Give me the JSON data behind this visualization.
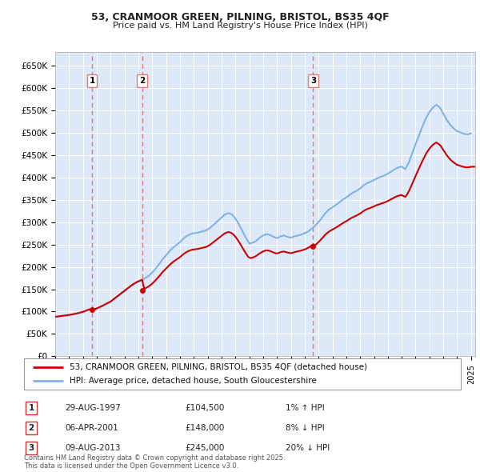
{
  "title_line1": "53, CRANMOOR GREEN, PILNING, BRISTOL, BS35 4QF",
  "title_line2": "Price paid vs. HM Land Registry's House Price Index (HPI)",
  "background_color": "#ffffff",
  "plot_bg_color": "#dde8f8",
  "grid_color": "#ffffff",
  "hpi_color": "#7fb3e8",
  "price_color": "#cc0000",
  "sale_marker_color": "#cc0000",
  "sale_vline_color": "#e87878",
  "yticks": [
    0,
    50000,
    100000,
    150000,
    200000,
    250000,
    300000,
    350000,
    400000,
    450000,
    500000,
    550000,
    600000,
    650000
  ],
  "ytick_labels": [
    "£0",
    "£50K",
    "£100K",
    "£150K",
    "£200K",
    "£250K",
    "£300K",
    "£350K",
    "£400K",
    "£450K",
    "£500K",
    "£550K",
    "£600K",
    "£650K"
  ],
  "xmin": 1995.0,
  "xmax": 2025.3,
  "ymin": 0,
  "ymax": 680000,
  "sales": [
    {
      "year": 1997.66,
      "price": 104500,
      "label": "1"
    },
    {
      "year": 2001.27,
      "price": 148000,
      "label": "2"
    },
    {
      "year": 2013.61,
      "price": 245000,
      "label": "3"
    }
  ],
  "legend_entries": [
    {
      "label": "53, CRANMOOR GREEN, PILNING, BRISTOL, BS35 4QF (detached house)",
      "color": "#cc0000"
    },
    {
      "label": "HPI: Average price, detached house, South Gloucestershire",
      "color": "#7fb3e8"
    }
  ],
  "table_rows": [
    {
      "num": "1",
      "date": "29-AUG-1997",
      "price": "£104,500",
      "hpi": "1% ↑ HPI"
    },
    {
      "num": "2",
      "date": "06-APR-2001",
      "price": "£148,000",
      "hpi": "8% ↓ HPI"
    },
    {
      "num": "3",
      "date": "09-AUG-2013",
      "price": "£245,000",
      "hpi": "20% ↓ HPI"
    }
  ],
  "footnote": "Contains HM Land Registry data © Crown copyright and database right 2025.\nThis data is licensed under the Open Government Licence v3.0.",
  "hpi_data_x": [
    1995.0,
    1995.25,
    1995.5,
    1995.75,
    1996.0,
    1996.25,
    1996.5,
    1996.75,
    1997.0,
    1997.25,
    1997.5,
    1997.75,
    1998.0,
    1998.25,
    1998.5,
    1998.75,
    1999.0,
    1999.25,
    1999.5,
    1999.75,
    2000.0,
    2000.25,
    2000.5,
    2000.75,
    2001.0,
    2001.25,
    2001.5,
    2001.75,
    2002.0,
    2002.25,
    2002.5,
    2002.75,
    2003.0,
    2003.25,
    2003.5,
    2003.75,
    2004.0,
    2004.25,
    2004.5,
    2004.75,
    2005.0,
    2005.25,
    2005.5,
    2005.75,
    2006.0,
    2006.25,
    2006.5,
    2006.75,
    2007.0,
    2007.25,
    2007.5,
    2007.75,
    2008.0,
    2008.25,
    2008.5,
    2008.75,
    2009.0,
    2009.25,
    2009.5,
    2009.75,
    2010.0,
    2010.25,
    2010.5,
    2010.75,
    2011.0,
    2011.25,
    2011.5,
    2011.75,
    2012.0,
    2012.25,
    2012.5,
    2012.75,
    2013.0,
    2013.25,
    2013.5,
    2013.75,
    2014.0,
    2014.25,
    2014.5,
    2014.75,
    2015.0,
    2015.25,
    2015.5,
    2015.75,
    2016.0,
    2016.25,
    2016.5,
    2016.75,
    2017.0,
    2017.25,
    2017.5,
    2017.75,
    2018.0,
    2018.25,
    2018.5,
    2018.75,
    2019.0,
    2019.25,
    2019.5,
    2019.75,
    2020.0,
    2020.25,
    2020.5,
    2020.75,
    2021.0,
    2021.25,
    2021.5,
    2021.75,
    2022.0,
    2022.25,
    2022.5,
    2022.75,
    2023.0,
    2023.25,
    2023.5,
    2023.75,
    2024.0,
    2024.25,
    2024.5,
    2024.75,
    2025.0
  ],
  "hpi_data_y": [
    88000,
    89000,
    90000,
    91000,
    92000,
    93500,
    95000,
    97000,
    99000,
    102000,
    105000,
    103500,
    107000,
    110000,
    114000,
    118000,
    122000,
    128000,
    134000,
    140000,
    146000,
    152000,
    158000,
    163000,
    167000,
    170000,
    175000,
    180000,
    187000,
    196000,
    206000,
    217000,
    226000,
    235000,
    243000,
    249000,
    255000,
    263000,
    269000,
    273000,
    275000,
    276000,
    278000,
    280000,
    283000,
    289000,
    296000,
    303000,
    310000,
    317000,
    320000,
    317000,
    308000,
    295000,
    280000,
    265000,
    252000,
    254000,
    258000,
    265000,
    270000,
    273000,
    271000,
    267000,
    264000,
    268000,
    270000,
    267000,
    265000,
    268000,
    270000,
    272000,
    275000,
    279000,
    285000,
    292000,
    300000,
    310000,
    320000,
    328000,
    333000,
    338000,
    344000,
    350000,
    355000,
    361000,
    366000,
    370000,
    375000,
    382000,
    387000,
    390000,
    394000,
    398000,
    401000,
    404000,
    408000,
    413000,
    418000,
    422000,
    424000,
    418000,
    432000,
    453000,
    474000,
    494000,
    514000,
    532000,
    546000,
    556000,
    562000,
    556000,
    542000,
    528000,
    517000,
    509000,
    503000,
    500000,
    497000,
    496000,
    498000
  ],
  "sale_years": [
    1997.66,
    2001.27,
    2013.61
  ],
  "sale_prices": [
    104500,
    148000,
    245000
  ]
}
